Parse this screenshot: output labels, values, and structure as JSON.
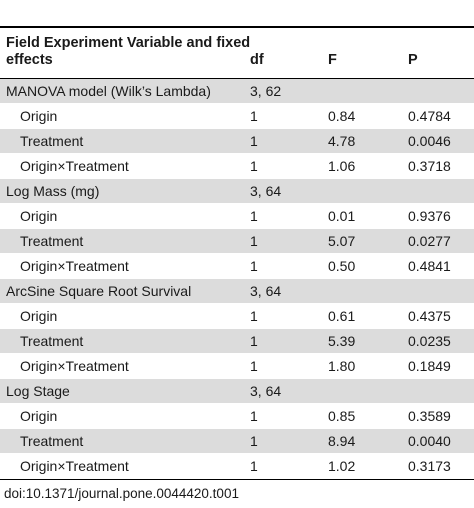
{
  "header": {
    "variable": "Field Experiment Variable and fixed effects",
    "df": "df",
    "f": "F",
    "p": "P"
  },
  "rows": [
    {
      "variable": "MANOVA model (Wilk’s Lambda)",
      "df": "3, 62",
      "f": "",
      "p": "",
      "level": "group"
    },
    {
      "variable": "Origin",
      "df": "1",
      "f": "0.84",
      "p": "0.4784",
      "level": "sub"
    },
    {
      "variable": "Treatment",
      "df": "1",
      "f": "4.78",
      "p": "0.0046",
      "level": "sub"
    },
    {
      "variable": "Origin×Treatment",
      "df": "1",
      "f": "1.06",
      "p": "0.3718",
      "level": "sub"
    },
    {
      "variable": "Log Mass (mg)",
      "df": "3, 64",
      "f": "",
      "p": "",
      "level": "group"
    },
    {
      "variable": "Origin",
      "df": "1",
      "f": "0.01",
      "p": "0.9376",
      "level": "sub"
    },
    {
      "variable": "Treatment",
      "df": "1",
      "f": "5.07",
      "p": "0.0277",
      "level": "sub"
    },
    {
      "variable": "Origin×Treatment",
      "df": "1",
      "f": "0.50",
      "p": "0.4841",
      "level": "sub"
    },
    {
      "variable": "ArcSine Square Root Survival",
      "df": "3, 64",
      "f": "",
      "p": "",
      "level": "group"
    },
    {
      "variable": "Origin",
      "df": "1",
      "f": "0.61",
      "p": "0.4375",
      "level": "sub"
    },
    {
      "variable": "Treatment",
      "df": "1",
      "f": "5.39",
      "p": "0.0235",
      "level": "sub"
    },
    {
      "variable": "Origin×Treatment",
      "df": "1",
      "f": "1.80",
      "p": "0.1849",
      "level": "sub"
    },
    {
      "variable": "Log Stage",
      "df": "3, 64",
      "f": "",
      "p": "",
      "level": "group"
    },
    {
      "variable": "Origin",
      "df": "1",
      "f": "0.85",
      "p": "0.3589",
      "level": "sub"
    },
    {
      "variable": "Treatment",
      "df": "1",
      "f": "8.94",
      "p": "0.0040",
      "level": "sub"
    },
    {
      "variable": "Origin×Treatment",
      "df": "1",
      "f": "1.02",
      "p": "0.3173",
      "level": "sub"
    }
  ],
  "footer": {
    "doi": "doi:10.1371/journal.pone.0044420.t001"
  },
  "colors": {
    "shade": "#dcdcdc",
    "rule": "#000000"
  }
}
